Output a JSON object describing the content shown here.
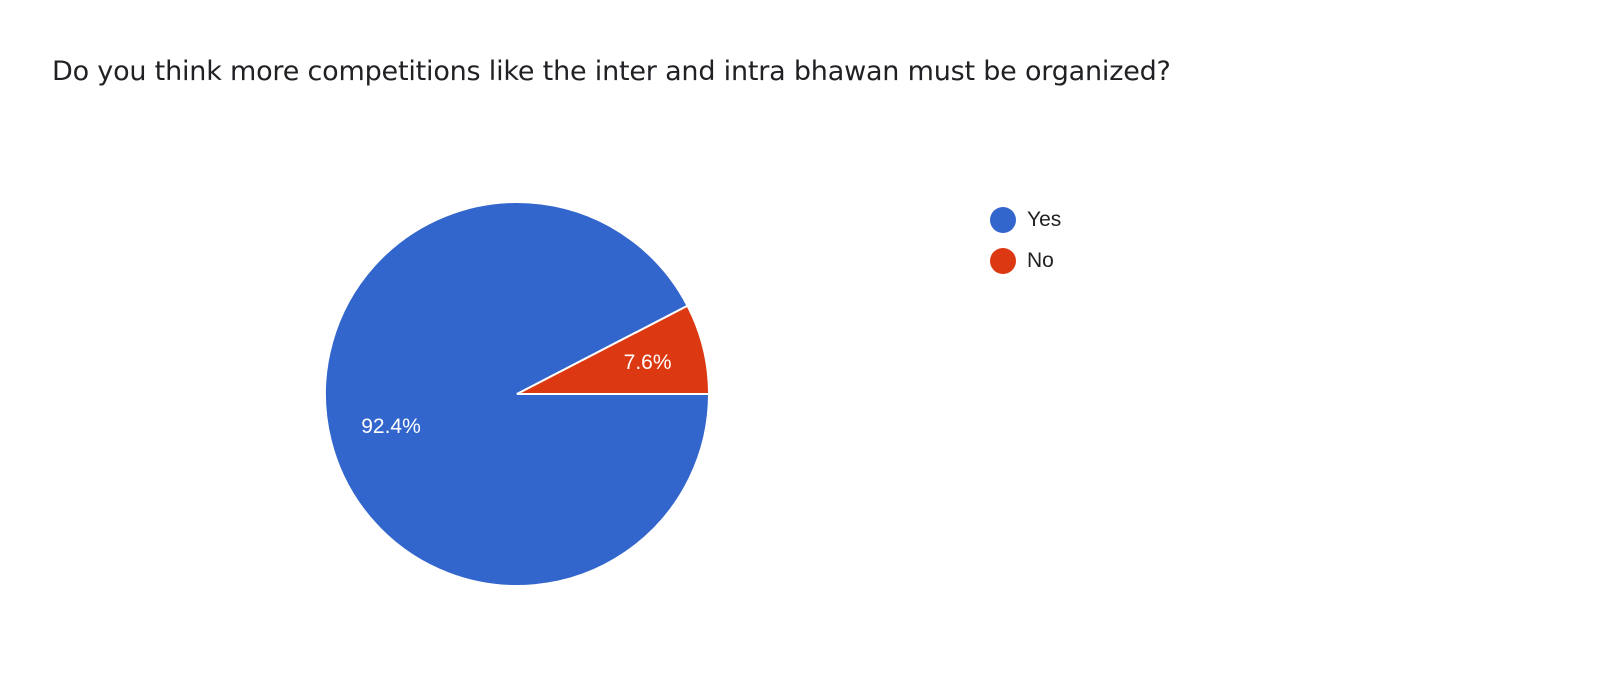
{
  "chart_data": {
    "type": "pie",
    "title": "Do you think more competitions like the inter and intra bhawan must be organized?",
    "categories": [
      "Yes",
      "No"
    ],
    "values": [
      92.4,
      7.6
    ],
    "labels": [
      "92.4%",
      "7.6%"
    ],
    "colors": [
      "#3366cc",
      "#dc3912"
    ],
    "legend_position": "right"
  }
}
